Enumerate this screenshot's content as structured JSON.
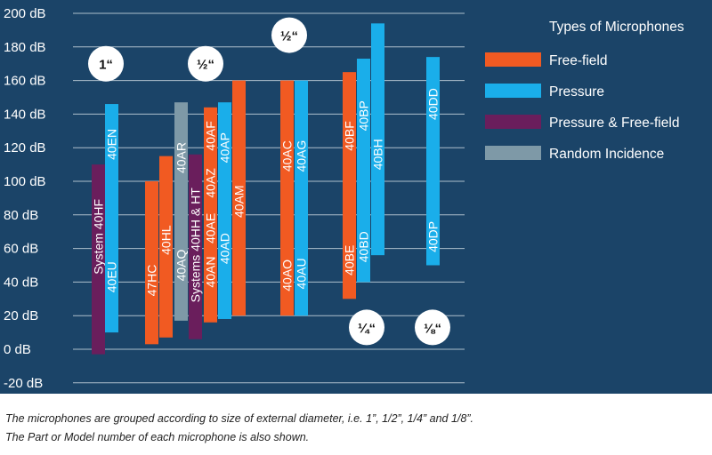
{
  "chart_data": {
    "type": "bar",
    "subtype": "floating-range",
    "y_unit": "dB",
    "ylim": [
      -20,
      200
    ],
    "y_ticks": [
      "200 dB",
      "180 dB",
      "160 dB",
      "140 dB",
      "120 dB",
      "100 dB",
      "80 dB",
      "60 dB",
      "40 dB",
      "20 dB",
      "0 dB",
      "-20 dB"
    ],
    "grid": "horizontal",
    "legend": {
      "title": "Types of Microphones",
      "position": "top-right",
      "entries": [
        {
          "key": "free_field",
          "label": "Free-field"
        },
        {
          "key": "pressure",
          "label": "Pressure"
        },
        {
          "key": "pressure_free_field",
          "label": "Pressure & Free-field"
        },
        {
          "key": "random_incidence",
          "label": "Random Incidence"
        }
      ]
    },
    "colors": {
      "free_field": "#f15a22",
      "pressure": "#1aaeea",
      "pressure_free_field": "#6a1e5c",
      "random_incidence": "#7e99a7",
      "background": "#1b4468",
      "grid": "#aebfcc",
      "badge": "#ffffff"
    },
    "size_groups": [
      {
        "label": "1“",
        "value": 170
      },
      {
        "label": "½“",
        "value": 170
      },
      {
        "label": "½“",
        "value": 187
      },
      {
        "label": "¼“",
        "value": 13
      },
      {
        "label": "⅛“",
        "value": 13
      }
    ],
    "bars": [
      {
        "type": "pressure_free_field",
        "min": -3,
        "max": 110,
        "labels": [
          "System 40HF"
        ]
      },
      {
        "type": "pressure",
        "min": 10,
        "max": 146,
        "labels": [
          "40EU",
          "40EN"
        ]
      },
      {
        "type": "free_field",
        "min": 3,
        "max": 100,
        "labels": [
          "47HC"
        ]
      },
      {
        "type": "free_field",
        "min": 7,
        "max": 115,
        "labels": [
          "40HL"
        ]
      },
      {
        "type": "random_incidence",
        "min": 17,
        "max": 147,
        "labels": [
          "40AQ",
          "40AR"
        ]
      },
      {
        "type": "pressure_free_field",
        "min": 6,
        "max": 116,
        "labels": [
          "Systems 40HH & HT"
        ]
      },
      {
        "type": "free_field",
        "min": 16,
        "max": 144,
        "labels": [
          "40AN",
          "40AE",
          "40AZ",
          "40AF"
        ]
      },
      {
        "type": "pressure",
        "min": 18,
        "max": 147,
        "labels": [
          "40AD",
          "40AP"
        ]
      },
      {
        "type": "free_field",
        "min": 20,
        "max": 160,
        "labels": [
          "40AM"
        ]
      },
      {
        "type": "free_field",
        "min": 20,
        "max": 160,
        "labels": [
          "40AO",
          "40AC"
        ]
      },
      {
        "type": "pressure",
        "min": 20,
        "max": 160,
        "labels": [
          "40AU",
          "40AG"
        ]
      },
      {
        "type": "free_field",
        "min": 30,
        "max": 165,
        "labels": [
          "40BE",
          "40BF"
        ]
      },
      {
        "type": "pressure",
        "min": 40,
        "max": 173,
        "labels": [
          "40BD",
          "40BP"
        ]
      },
      {
        "type": "pressure",
        "min": 56,
        "max": 194,
        "labels": [
          "40BH"
        ]
      },
      {
        "type": "pressure",
        "min": 50,
        "max": 174,
        "labels": [
          "40DP",
          "40DD"
        ]
      }
    ]
  },
  "caption": {
    "line1": "The microphones are grouped according to size of external diameter, i.e. 1”, 1/2”, 1/4” and 1/8”.",
    "line2": "The Part or Model number of each microphone is also shown."
  }
}
